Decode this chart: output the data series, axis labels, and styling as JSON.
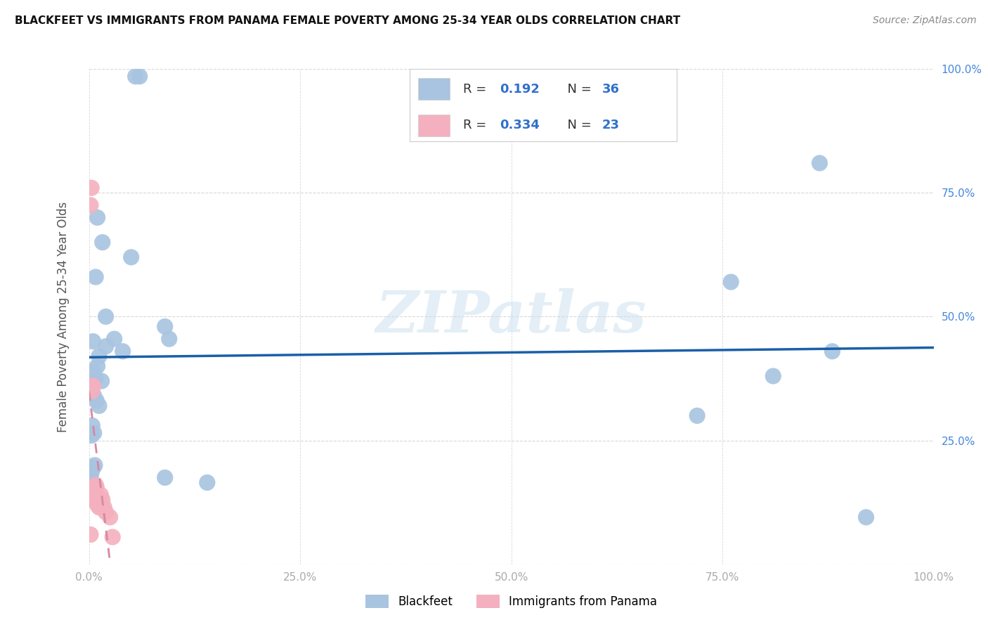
{
  "title": "BLACKFEET VS IMMIGRANTS FROM PANAMA FEMALE POVERTY AMONG 25-34 YEAR OLDS CORRELATION CHART",
  "source": "Source: ZipAtlas.com",
  "ylabel": "Female Poverty Among 25-34 Year Olds",
  "xlim": [
    0.0,
    1.0
  ],
  "ylim": [
    0.0,
    1.0
  ],
  "xticks": [
    0.0,
    0.25,
    0.5,
    0.75,
    1.0
  ],
  "yticks": [
    0.0,
    0.25,
    0.5,
    0.75,
    1.0
  ],
  "xtick_labels": [
    "0.0%",
    "25.0%",
    "50.0%",
    "75.0%",
    "100.0%"
  ],
  "right_ytick_labels": [
    "25.0%",
    "50.0%",
    "75.0%",
    "100.0%"
  ],
  "right_yticks": [
    0.25,
    0.5,
    0.75,
    1.0
  ],
  "blackfeet_color": "#a8c4e0",
  "panama_color": "#f4b0be",
  "trend_blue_color": "#1a5fa8",
  "trend_pink_color": "#d888a0",
  "legend_color": "#3070cc",
  "watermark": "ZIPatlas",
  "watermark_color": "#cce0f0",
  "background_color": "#ffffff",
  "grid_color": "#d8d8d8",
  "blackfeet_x": [
    0.055,
    0.06,
    0.01,
    0.016,
    0.05,
    0.008,
    0.02,
    0.09,
    0.03,
    0.095,
    0.02,
    0.04,
    0.012,
    0.01,
    0.005,
    0.008,
    0.015,
    0.006,
    0.009,
    0.012,
    0.004,
    0.006,
    0.003,
    0.007,
    0.005,
    0.003,
    0.002,
    0.09,
    0.14,
    0.72,
    0.76,
    0.81,
    0.865,
    0.88,
    0.92,
    0.005
  ],
  "blackfeet_y": [
    0.985,
    0.985,
    0.7,
    0.65,
    0.62,
    0.58,
    0.5,
    0.48,
    0.455,
    0.455,
    0.44,
    0.43,
    0.42,
    0.4,
    0.39,
    0.375,
    0.37,
    0.34,
    0.33,
    0.32,
    0.28,
    0.265,
    0.26,
    0.2,
    0.195,
    0.185,
    0.175,
    0.175,
    0.165,
    0.3,
    0.57,
    0.38,
    0.81,
    0.43,
    0.095,
    0.45
  ],
  "panama_x": [
    0.002,
    0.003,
    0.003,
    0.004,
    0.005,
    0.005,
    0.006,
    0.006,
    0.007,
    0.008,
    0.009,
    0.009,
    0.01,
    0.011,
    0.012,
    0.014,
    0.015,
    0.016,
    0.018,
    0.02,
    0.025,
    0.028,
    0.002
  ],
  "panama_y": [
    0.725,
    0.76,
    0.36,
    0.35,
    0.36,
    0.155,
    0.145,
    0.13,
    0.14,
    0.16,
    0.155,
    0.13,
    0.12,
    0.13,
    0.115,
    0.14,
    0.115,
    0.13,
    0.115,
    0.105,
    0.095,
    0.055,
    0.06
  ]
}
